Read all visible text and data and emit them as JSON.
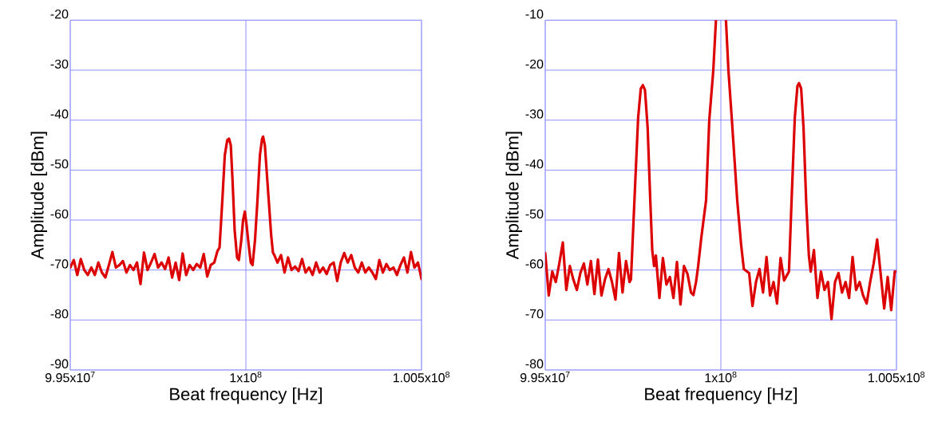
{
  "chart_data": [
    {
      "type": "line",
      "xlabel": "Beat frequency [Hz]",
      "ylabel": "Amplitude [dBm]",
      "xlim": [
        99500000,
        100500000
      ],
      "ylim": [
        -90,
        -20
      ],
      "xticks": [
        {
          "value": 99500000,
          "label": "9.95x10$^{7}$"
        },
        {
          "value": 100000000,
          "label": "1x10$^{8}$"
        },
        {
          "value": 100500000,
          "label": "1.005x10$^{8}$"
        }
      ],
      "yticks": [
        -90,
        -80,
        -70,
        -60,
        -50,
        -40,
        -30,
        -20
      ],
      "grid": true,
      "marker": "none",
      "line_style": "solid",
      "series": [
        {
          "color": "#dd0000",
          "x": [
            99500000,
            99510000,
            99520000,
            99530000,
            99540000,
            99550000,
            99560000,
            99570000,
            99580000,
            99590000,
            99600000,
            99610000,
            99620000,
            99630000,
            99640000,
            99650000,
            99660000,
            99670000,
            99680000,
            99690000,
            99700000,
            99710000,
            99720000,
            99730000,
            99740000,
            99750000,
            99760000,
            99770000,
            99780000,
            99790000,
            99800000,
            99810000,
            99820000,
            99830000,
            99840000,
            99850000,
            99860000,
            99870000,
            99880000,
            99890000,
            99900000,
            99910000,
            99919000,
            99925000,
            99933000,
            99940000,
            99947000,
            99952000,
            99957000,
            99962000,
            99968000,
            99975000,
            99980000,
            99987000,
            99992000,
            99997000,
            100002000,
            100008000,
            100014000,
            100019000,
            100026000,
            100033000,
            100040000,
            100046000,
            100049000,
            100054000,
            100060000,
            100066000,
            100072000,
            100077000,
            100081000,
            100090000,
            100100000,
            100110000,
            100120000,
            100130000,
            100140000,
            100150000,
            100160000,
            100170000,
            100180000,
            100190000,
            100200000,
            100210000,
            100220000,
            100230000,
            100240000,
            100250000,
            100260000,
            100270000,
            100280000,
            100290000,
            100300000,
            100310000,
            100320000,
            100330000,
            100340000,
            100350000,
            100360000,
            100370000,
            100380000,
            100390000,
            100400000,
            100410000,
            100420000,
            100430000,
            100440000,
            100450000,
            100460000,
            100470000,
            100480000,
            100490000,
            100500000
          ],
          "values": [
            -69.5,
            -68,
            -71,
            -67.8,
            -70,
            -71,
            -69.5,
            -71,
            -68.5,
            -70.5,
            -71.5,
            -69,
            -66.4,
            -69.5,
            -69,
            -68.2,
            -70.5,
            -69,
            -70,
            -68.5,
            -72.8,
            -66.5,
            -70,
            -68.5,
            -66.8,
            -69.5,
            -68.5,
            -69.8,
            -67.5,
            -71.5,
            -68.5,
            -72,
            -66.7,
            -71,
            -69,
            -70,
            -68.8,
            -69.5,
            -66.8,
            -71.3,
            -69,
            -68.5,
            -66.2,
            -65.5,
            -56,
            -47,
            -44,
            -43.7,
            -45,
            -52,
            -62,
            -67.5,
            -68,
            -64,
            -60,
            -58.3,
            -61,
            -65,
            -68.5,
            -69,
            -64,
            -56,
            -47,
            -43.8,
            -43.3,
            -45,
            -51,
            -57,
            -63,
            -66.5,
            -67,
            -68.5,
            -67,
            -70.5,
            -67.5,
            -70,
            -69.3,
            -70.2,
            -67.8,
            -70.5,
            -69.5,
            -71,
            -68.5,
            -70.5,
            -69.5,
            -70.8,
            -69,
            -68.5,
            -72.2,
            -68.5,
            -66.6,
            -68.5,
            -67,
            -69.5,
            -70.5,
            -68.5,
            -70.5,
            -69.5,
            -70.5,
            -71.8,
            -68,
            -70.5,
            -68.8,
            -70,
            -69.5,
            -71,
            -69,
            -67.5,
            -70.5,
            -66.4,
            -69.5,
            -68.5,
            -71.8
          ]
        }
      ]
    },
    {
      "type": "line",
      "xlabel": "Beat frequency [Hz]",
      "ylabel": "Amplitude [dBm]",
      "xlim": [
        99500000,
        100500000
      ],
      "ylim": [
        -80,
        -10
      ],
      "xticks": [
        {
          "value": 99500000,
          "label": "9.95x10$^{7}$"
        },
        {
          "value": 100000000,
          "label": "1x10$^{8}$"
        },
        {
          "value": 100500000,
          "label": "1.005x10$^{8}$"
        }
      ],
      "yticks": [
        -80,
        -70,
        -60,
        -50,
        -40,
        -30,
        -20,
        -10
      ],
      "grid": true,
      "marker": "none",
      "line_style": "solid",
      "series": [
        {
          "color": "#dd0000",
          "x": [
            99500000,
            99510000,
            99520000,
            99530000,
            99540000,
            99550000,
            99560000,
            99570000,
            99580000,
            99590000,
            99600000,
            99610000,
            99620000,
            99630000,
            99640000,
            99650000,
            99660000,
            99670000,
            99680000,
            99690000,
            99700000,
            99710000,
            99720000,
            99730000,
            99740000,
            99744000,
            99754000,
            99764500,
            99772000,
            99778000,
            99784000,
            99791600,
            99799300,
            99804600,
            99809900,
            99815000,
            99825000,
            99835000,
            99845000,
            99855000,
            99865000,
            99875000,
            99885000,
            99895000,
            99905000,
            99915000,
            99921800,
            99929300,
            99935400,
            99944500,
            99958000,
            99967000,
            99978500,
            99986000,
            100000000,
            100014500,
            100021500,
            100031400,
            100046500,
            100057800,
            100065400,
            100080500,
            100090000,
            100100000,
            100110000,
            100120000,
            100130000,
            100140000,
            100150000,
            100160000,
            100170000,
            100180000,
            100193900,
            100201400,
            100210500,
            100218000,
            100222600,
            100228600,
            100235400,
            100243000,
            100250500,
            100255800,
            100265000,
            100275000,
            100285000,
            100295000,
            100305000,
            100315000,
            100325000,
            100335000,
            100345000,
            100355000,
            100365000,
            100375000,
            100385000,
            100395000,
            100405000,
            100415000,
            100425000,
            100435000,
            100445000,
            100455000,
            100465000,
            100475000,
            100485000,
            100495000,
            100500000
          ],
          "values": [
            -56.6,
            -65.1,
            -60.3,
            -62.4,
            -58.7,
            -54.5,
            -64,
            -59.2,
            -61.9,
            -64,
            -60.6,
            -58.7,
            -62.9,
            -58.2,
            -64.8,
            -57.9,
            -65.1,
            -61.9,
            -59.8,
            -62.4,
            -65.9,
            -56.6,
            -64.5,
            -58.2,
            -62.4,
            -61.9,
            -46,
            -29.5,
            -23.7,
            -23,
            -24,
            -31.6,
            -46.5,
            -56,
            -59.2,
            -57.1,
            -65.6,
            -57.6,
            -62.9,
            -61.4,
            -65.6,
            -58.4,
            -66.9,
            -59.2,
            -60.8,
            -64.5,
            -65,
            -62.4,
            -59.2,
            -53.4,
            -46,
            -30,
            -20,
            -10,
            null,
            -10,
            -20,
            -30,
            -46,
            -55,
            -59.8,
            -60.6,
            -67.2,
            -62.4,
            -59.8,
            -64.5,
            -57.4,
            -65.1,
            -62.4,
            -66.7,
            -57.6,
            -62.1,
            -60.3,
            -46,
            -29.5,
            -23.2,
            -22.6,
            -23.7,
            -31.6,
            -46.5,
            -57,
            -60.3,
            -56,
            -65.6,
            -60.3,
            -64,
            -62.4,
            -69.8,
            -62.4,
            -60.6,
            -64.5,
            -62.4,
            -65.6,
            -57.4,
            -64,
            -62.4,
            -65.1,
            -66.7,
            -62.4,
            -58.7,
            -53.9,
            -60.8,
            -67.7,
            -61.4,
            -68,
            -60.3,
            -60.3
          ]
        }
      ]
    }
  ]
}
